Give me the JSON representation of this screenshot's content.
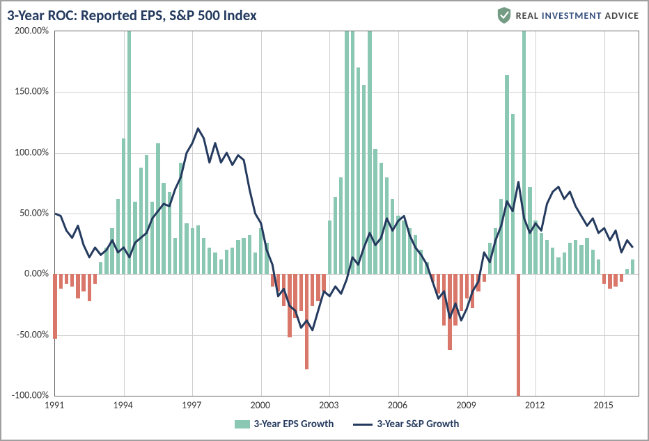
{
  "title": "3-Year ROC: Reported EPS, S&P 500 Index",
  "brand": {
    "text1": "REAL ",
    "text2": "INVESTMENT ",
    "text3": "ADVICE"
  },
  "chart": {
    "type": "bar+line",
    "y": {
      "min": -100,
      "max": 200,
      "step": 50,
      "suffix": ".00%"
    },
    "x": {
      "start": 1991,
      "end": 2016.5,
      "tick_start": 1991,
      "tick_step": 3,
      "tick_end": 2015
    },
    "colors": {
      "bar_positive": "#8bc8b3",
      "bar_negative": "#d9776a",
      "line": "#243a5e",
      "grid": "#cfcfcf",
      "axis": "#666666",
      "text": "#333333",
      "title": "#243a5e",
      "background": "#ffffff"
    },
    "legend": {
      "bar_label": "3-Year EPS Growth",
      "line_label": "3-Year S&P Growth"
    },
    "bars": [
      {
        "x": 1991.0,
        "v": -53
      },
      {
        "x": 1991.25,
        "v": -12
      },
      {
        "x": 1991.5,
        "v": -8
      },
      {
        "x": 1991.75,
        "v": -10
      },
      {
        "x": 1992.0,
        "v": -20
      },
      {
        "x": 1992.25,
        "v": -14
      },
      {
        "x": 1992.5,
        "v": -22
      },
      {
        "x": 1992.75,
        "v": -8
      },
      {
        "x": 1993.0,
        "v": 10
      },
      {
        "x": 1993.25,
        "v": 22
      },
      {
        "x": 1993.5,
        "v": 38
      },
      {
        "x": 1993.75,
        "v": 62
      },
      {
        "x": 1994.0,
        "v": 112
      },
      {
        "x": 1994.25,
        "v": 200
      },
      {
        "x": 1994.5,
        "v": 60
      },
      {
        "x": 1994.75,
        "v": 88
      },
      {
        "x": 1995.0,
        "v": 98
      },
      {
        "x": 1995.25,
        "v": 60
      },
      {
        "x": 1995.5,
        "v": 108
      },
      {
        "x": 1995.75,
        "v": 75
      },
      {
        "x": 1996.0,
        "v": 68
      },
      {
        "x": 1996.25,
        "v": 30
      },
      {
        "x": 1996.5,
        "v": 92
      },
      {
        "x": 1996.75,
        "v": 42
      },
      {
        "x": 1997.0,
        "v": 38
      },
      {
        "x": 1997.25,
        "v": 40
      },
      {
        "x": 1997.5,
        "v": 30
      },
      {
        "x": 1997.75,
        "v": 22
      },
      {
        "x": 1998.0,
        "v": 18
      },
      {
        "x": 1998.25,
        "v": 12
      },
      {
        "x": 1998.5,
        "v": 20
      },
      {
        "x": 1998.75,
        "v": 22
      },
      {
        "x": 1999.0,
        "v": 28
      },
      {
        "x": 1999.25,
        "v": 30
      },
      {
        "x": 1999.5,
        "v": 32
      },
      {
        "x": 1999.75,
        "v": 18
      },
      {
        "x": 2000.0,
        "v": 38
      },
      {
        "x": 2000.25,
        "v": 26
      },
      {
        "x": 2000.5,
        "v": -10
      },
      {
        "x": 2000.75,
        "v": -14
      },
      {
        "x": 2001.0,
        "v": -26
      },
      {
        "x": 2001.25,
        "v": -52
      },
      {
        "x": 2001.5,
        "v": -36
      },
      {
        "x": 2001.75,
        "v": -30
      },
      {
        "x": 2002.0,
        "v": -78
      },
      {
        "x": 2002.25,
        "v": -26
      },
      {
        "x": 2002.5,
        "v": -22
      },
      {
        "x": 2002.75,
        "v": -14
      },
      {
        "x": 2003.0,
        "v": 44
      },
      {
        "x": 2003.25,
        "v": 64
      },
      {
        "x": 2003.5,
        "v": 80
      },
      {
        "x": 2003.75,
        "v": 200
      },
      {
        "x": 2004.0,
        "v": 200
      },
      {
        "x": 2004.25,
        "v": 170
      },
      {
        "x": 2004.5,
        "v": 156
      },
      {
        "x": 2004.75,
        "v": 200
      },
      {
        "x": 2005.0,
        "v": 103
      },
      {
        "x": 2005.25,
        "v": 92
      },
      {
        "x": 2005.5,
        "v": 80
      },
      {
        "x": 2005.75,
        "v": 62
      },
      {
        "x": 2006.0,
        "v": 48
      },
      {
        "x": 2006.25,
        "v": 44
      },
      {
        "x": 2006.5,
        "v": 38
      },
      {
        "x": 2006.75,
        "v": 32
      },
      {
        "x": 2007.0,
        "v": 20
      },
      {
        "x": 2007.25,
        "v": 10
      },
      {
        "x": 2007.5,
        "v": -6
      },
      {
        "x": 2007.75,
        "v": -16
      },
      {
        "x": 2008.0,
        "v": -42
      },
      {
        "x": 2008.25,
        "v": -62
      },
      {
        "x": 2008.5,
        "v": -42
      },
      {
        "x": 2008.75,
        "v": -30
      },
      {
        "x": 2009.0,
        "v": -20
      },
      {
        "x": 2009.25,
        "v": -28
      },
      {
        "x": 2009.5,
        "v": -14
      },
      {
        "x": 2009.75,
        "v": -6
      },
      {
        "x": 2010.0,
        "v": 26
      },
      {
        "x": 2010.25,
        "v": 38
      },
      {
        "x": 2010.5,
        "v": 62
      },
      {
        "x": 2010.75,
        "v": 164
      },
      {
        "x": 2011.0,
        "v": 132
      },
      {
        "x": 2011.25,
        "v": -100
      },
      {
        "x": 2011.5,
        "v": 200
      },
      {
        "x": 2011.75,
        "v": 72
      },
      {
        "x": 2012.0,
        "v": 44
      },
      {
        "x": 2012.25,
        "v": 34
      },
      {
        "x": 2012.5,
        "v": 28
      },
      {
        "x": 2012.75,
        "v": 22
      },
      {
        "x": 2013.0,
        "v": 14
      },
      {
        "x": 2013.25,
        "v": 18
      },
      {
        "x": 2013.5,
        "v": 26
      },
      {
        "x": 2013.75,
        "v": 28
      },
      {
        "x": 2014.0,
        "v": 24
      },
      {
        "x": 2014.25,
        "v": 30
      },
      {
        "x": 2014.5,
        "v": 20
      },
      {
        "x": 2014.75,
        "v": 12
      },
      {
        "x": 2015.0,
        "v": -8
      },
      {
        "x": 2015.25,
        "v": -12
      },
      {
        "x": 2015.5,
        "v": -10
      },
      {
        "x": 2015.75,
        "v": -6
      },
      {
        "x": 2016.0,
        "v": 4
      },
      {
        "x": 2016.25,
        "v": 12
      }
    ],
    "line": [
      {
        "x": 1991.0,
        "v": 50
      },
      {
        "x": 1991.25,
        "v": 48
      },
      {
        "x": 1991.5,
        "v": 36
      },
      {
        "x": 1991.75,
        "v": 30
      },
      {
        "x": 1992.0,
        "v": 40
      },
      {
        "x": 1992.25,
        "v": 24
      },
      {
        "x": 1992.5,
        "v": 14
      },
      {
        "x": 1992.75,
        "v": 22
      },
      {
        "x": 1993.0,
        "v": 16
      },
      {
        "x": 1993.25,
        "v": 20
      },
      {
        "x": 1993.5,
        "v": 28
      },
      {
        "x": 1993.75,
        "v": 18
      },
      {
        "x": 1994.0,
        "v": 22
      },
      {
        "x": 1994.25,
        "v": 14
      },
      {
        "x": 1994.5,
        "v": 26
      },
      {
        "x": 1994.75,
        "v": 30
      },
      {
        "x": 1995.0,
        "v": 34
      },
      {
        "x": 1995.25,
        "v": 46
      },
      {
        "x": 1995.5,
        "v": 52
      },
      {
        "x": 1995.75,
        "v": 58
      },
      {
        "x": 1996.0,
        "v": 56
      },
      {
        "x": 1996.25,
        "v": 70
      },
      {
        "x": 1996.5,
        "v": 80
      },
      {
        "x": 1996.75,
        "v": 100
      },
      {
        "x": 1997.0,
        "v": 108
      },
      {
        "x": 1997.25,
        "v": 120
      },
      {
        "x": 1997.5,
        "v": 112
      },
      {
        "x": 1997.75,
        "v": 92
      },
      {
        "x": 1998.0,
        "v": 108
      },
      {
        "x": 1998.25,
        "v": 92
      },
      {
        "x": 1998.5,
        "v": 100
      },
      {
        "x": 1998.75,
        "v": 90
      },
      {
        "x": 1999.0,
        "v": 98
      },
      {
        "x": 1999.25,
        "v": 94
      },
      {
        "x": 1999.5,
        "v": 70
      },
      {
        "x": 1999.75,
        "v": 50
      },
      {
        "x": 2000.0,
        "v": 42
      },
      {
        "x": 2000.25,
        "v": 20
      },
      {
        "x": 2000.5,
        "v": 8
      },
      {
        "x": 2000.75,
        "v": -18
      },
      {
        "x": 2001.0,
        "v": -12
      },
      {
        "x": 2001.25,
        "v": -26
      },
      {
        "x": 2001.5,
        "v": -30
      },
      {
        "x": 2001.75,
        "v": -44
      },
      {
        "x": 2002.0,
        "v": -38
      },
      {
        "x": 2002.25,
        "v": -46
      },
      {
        "x": 2002.5,
        "v": -30
      },
      {
        "x": 2002.75,
        "v": -14
      },
      {
        "x": 2003.0,
        "v": -18
      },
      {
        "x": 2003.25,
        "v": -10
      },
      {
        "x": 2003.5,
        "v": -16
      },
      {
        "x": 2003.75,
        "v": -4
      },
      {
        "x": 2004.0,
        "v": 14
      },
      {
        "x": 2004.25,
        "v": 8
      },
      {
        "x": 2004.5,
        "v": 22
      },
      {
        "x": 2004.75,
        "v": 34
      },
      {
        "x": 2005.0,
        "v": 24
      },
      {
        "x": 2005.25,
        "v": 30
      },
      {
        "x": 2005.5,
        "v": 46
      },
      {
        "x": 2005.75,
        "v": 36
      },
      {
        "x": 2006.0,
        "v": 44
      },
      {
        "x": 2006.25,
        "v": 48
      },
      {
        "x": 2006.5,
        "v": 32
      },
      {
        "x": 2006.75,
        "v": 22
      },
      {
        "x": 2007.0,
        "v": 16
      },
      {
        "x": 2007.25,
        "v": 8
      },
      {
        "x": 2007.5,
        "v": -6
      },
      {
        "x": 2007.75,
        "v": -20
      },
      {
        "x": 2008.0,
        "v": -14
      },
      {
        "x": 2008.25,
        "v": -36
      },
      {
        "x": 2008.5,
        "v": -24
      },
      {
        "x": 2008.75,
        "v": -38
      },
      {
        "x": 2009.0,
        "v": -28
      },
      {
        "x": 2009.25,
        "v": -14
      },
      {
        "x": 2009.5,
        "v": -6
      },
      {
        "x": 2009.75,
        "v": 18
      },
      {
        "x": 2010.0,
        "v": 10
      },
      {
        "x": 2010.25,
        "v": 28
      },
      {
        "x": 2010.5,
        "v": 40
      },
      {
        "x": 2010.75,
        "v": 60
      },
      {
        "x": 2011.0,
        "v": 52
      },
      {
        "x": 2011.25,
        "v": 76
      },
      {
        "x": 2011.5,
        "v": 46
      },
      {
        "x": 2011.75,
        "v": 34
      },
      {
        "x": 2012.0,
        "v": 42
      },
      {
        "x": 2012.25,
        "v": 36
      },
      {
        "x": 2012.5,
        "v": 58
      },
      {
        "x": 2012.75,
        "v": 68
      },
      {
        "x": 2013.0,
        "v": 72
      },
      {
        "x": 2013.25,
        "v": 62
      },
      {
        "x": 2013.5,
        "v": 68
      },
      {
        "x": 2013.75,
        "v": 56
      },
      {
        "x": 2014.0,
        "v": 48
      },
      {
        "x": 2014.25,
        "v": 40
      },
      {
        "x": 2014.5,
        "v": 46
      },
      {
        "x": 2014.75,
        "v": 34
      },
      {
        "x": 2015.0,
        "v": 38
      },
      {
        "x": 2015.25,
        "v": 28
      },
      {
        "x": 2015.5,
        "v": 36
      },
      {
        "x": 2015.75,
        "v": 18
      },
      {
        "x": 2016.0,
        "v": 28
      },
      {
        "x": 2016.25,
        "v": 22
      }
    ]
  }
}
